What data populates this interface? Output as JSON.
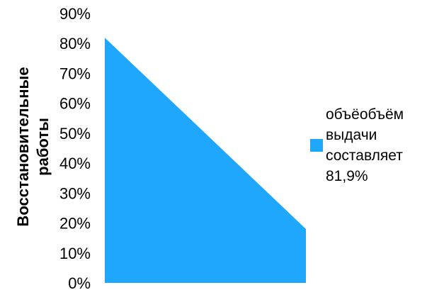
{
  "chart_data": {
    "type": "area",
    "ylabel": "Восстановительные работы",
    "ylabel_lines": [
      "Восстановительные",
      "работы"
    ],
    "y_ticks": [
      "0%",
      "10%",
      "20%",
      "30%",
      "40%",
      "50%",
      "60%",
      "70%",
      "80%",
      "90%"
    ],
    "ylim": [
      0,
      0.9
    ],
    "grid": false,
    "legend_position": "right",
    "series": [
      {
        "name": "объёобъём\nвыдачи\nсоставляет\n81,9%",
        "color": "#1ea7fd",
        "values": [
          0.819,
          0.18
        ]
      }
    ]
  }
}
